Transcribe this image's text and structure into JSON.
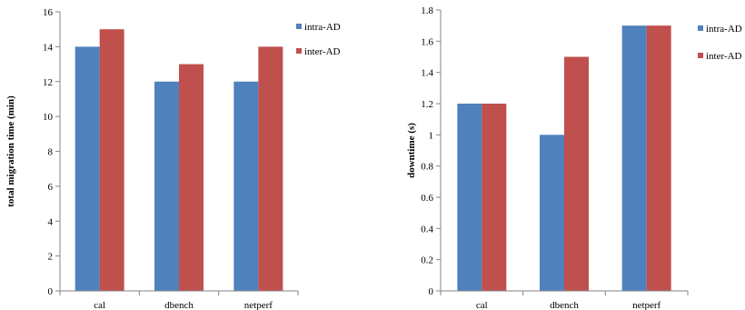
{
  "chart_data": [
    {
      "type": "bar",
      "categories": [
        "cal",
        "dbench",
        "netperf"
      ],
      "series": [
        {
          "name": "intra-AD",
          "values": [
            14,
            12,
            12
          ]
        },
        {
          "name": "inter-AD",
          "values": [
            15,
            13,
            14
          ]
        }
      ],
      "ylabel": "total migration time (min)",
      "xlabel": "",
      "title": "",
      "ylim": [
        0,
        16
      ],
      "yticks": [
        "0",
        "2",
        "4",
        "6",
        "8",
        "10",
        "12",
        "14",
        "16"
      ],
      "grid": false,
      "legend": "right"
    },
    {
      "type": "bar",
      "categories": [
        "cal",
        "dbench",
        "netperf"
      ],
      "series": [
        {
          "name": "intra-AD",
          "values": [
            1.2,
            1.0,
            1.7
          ]
        },
        {
          "name": "inter-AD",
          "values": [
            1.2,
            1.5,
            1.7
          ]
        }
      ],
      "ylabel": "downtime  (s)",
      "xlabel": "",
      "title": "",
      "ylim": [
        0,
        1.8
      ],
      "yticks": [
        "0",
        "0.2",
        "0.4",
        "0.6",
        "0.8",
        "1",
        "1.2",
        "1.4",
        "1.6",
        "1.8"
      ],
      "grid": false,
      "legend": "right"
    }
  ],
  "colors": {
    "intra": "#4F81BD",
    "inter": "#C0504D",
    "axis": "#868686"
  }
}
